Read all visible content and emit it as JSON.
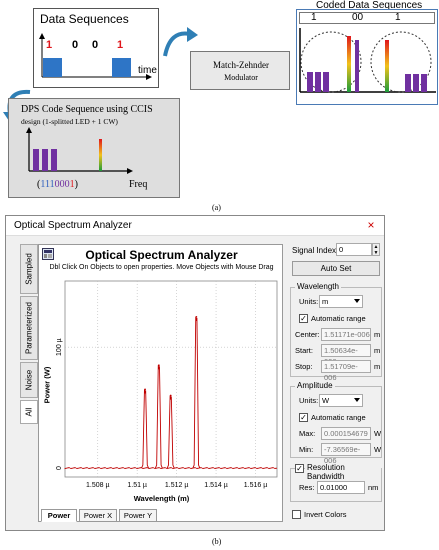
{
  "diagram_a": {
    "data_sequences_title": "Data Sequences",
    "bits": [
      "1",
      "0",
      "0",
      "1"
    ],
    "time_label": "time",
    "mz_line1": "Match-Zehnder",
    "mz_line2": "Modulator",
    "coded_title": "Coded Data Sequences",
    "coded_bits": [
      "1",
      "00",
      "1"
    ],
    "dps_title": "DPS Code Sequence using CCIS",
    "dps_subtitle": "design (1-splitted LED + 1 CW)",
    "code_open": "(",
    "code_blue": "111",
    "code_purple": "000",
    "code_red": "1",
    "code_close": ")",
    "freq_label": "Freq",
    "caption": "(a)"
  },
  "window": {
    "title": "Optical Spectrum Analyzer",
    "close_glyph": "×",
    "side_tabs": [
      "Sampled",
      "Parameterized",
      "Noise",
      "All"
    ],
    "graph_title": "Optical Spectrum Analyzer",
    "graph_hint": "Dbl Click On Objects to open properties.  Move Objects with Mouse Drag",
    "y_axis_label": "Power (W)",
    "x_axis_label": "Wavelength (m)",
    "bottom_tabs": [
      "Power",
      "Power X",
      "Power Y"
    ],
    "signal_index_label": "Signal Index:",
    "signal_index_value": "0",
    "auto_set": "Auto Set",
    "wavelength": {
      "title": "Wavelength",
      "units_label": "Units:",
      "units_value": "m",
      "auto_range": "Automatic range",
      "center_label": "Center:",
      "center_value": "1.51171e-006",
      "start_label": "Start:",
      "start_value": "1.50634e-006",
      "stop_label": "Stop:",
      "stop_value": "1.51709e-006",
      "unit": "m"
    },
    "amplitude": {
      "title": "Amplitude",
      "units_label": "Units:",
      "units_value": "W",
      "auto_range": "Automatic range",
      "max_label": "Max:",
      "max_value": "0.000154679",
      "min_label": "Min:",
      "min_value": "-7.36569e-006",
      "unit": "W"
    },
    "resolution": {
      "title": "Resolution Bandwidth",
      "res_label": "Res:",
      "res_value": "0.01000",
      "unit": "nm"
    },
    "invert_colors": "Invert Colors"
  },
  "chart_data": {
    "type": "line",
    "xlabel": "Wavelength (m)",
    "ylabel": "Power (W)",
    "x_ticks": [
      "1.508 µ",
      "1.51 µ",
      "1.512 µ",
      "1.514 µ",
      "1.516 µ"
    ],
    "x_tick_values": [
      1.508,
      1.51,
      1.512,
      1.514,
      1.516
    ],
    "y_ticks": [
      "0",
      "100 µ"
    ],
    "y_tick_values": [
      0,
      100
    ],
    "xlim": [
      1.50634,
      1.51709
    ],
    "ylim": [
      -7.4,
      154.7
    ],
    "grid": true,
    "series": [
      {
        "peaks": [
          {
            "x": 1.5104,
            "y": 65
          },
          {
            "x": 1.5111,
            "y": 85
          },
          {
            "x": 1.5117,
            "y": 60
          },
          {
            "x": 1.513,
            "y": 125
          }
        ]
      }
    ],
    "caption": "(b)"
  },
  "colors": {
    "trace": "#c00000",
    "bit_red": "#e0161b",
    "bar_blue": "#2e75c6",
    "bar_purple": "#7030a0",
    "code_blue": "#2f5fbf",
    "code_purple": "#7030a0",
    "arrow_teal": "#2f7fb5"
  }
}
